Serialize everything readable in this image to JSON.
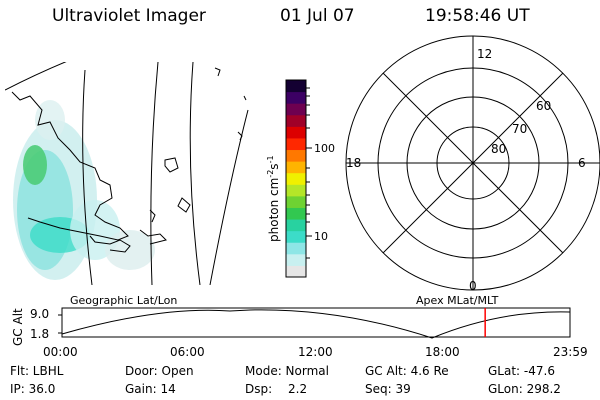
{
  "header": {
    "instrument": "Ultraviolet Imager",
    "date": "01 Jul 07",
    "time": "19:58:46 UT"
  },
  "colorbar": {
    "unit_label": "photon cm",
    "unit_exp1": "-2",
    "unit_mid": "s",
    "unit_exp2": "-1",
    "ticks": [
      "100",
      "10"
    ],
    "colors": [
      "#e6e6e6",
      "#c8f0f0",
      "#8ee6e6",
      "#3cdcc8",
      "#28d2a0",
      "#32c850",
      "#6ed232",
      "#b4e628",
      "#f0f000",
      "#ffb400",
      "#ff7800",
      "#ff2800",
      "#dc0000",
      "#a00028",
      "#6e0050",
      "#3c0064",
      "#140032"
    ]
  },
  "polar": {
    "mlt_labels": {
      "top": "12",
      "left": "18",
      "right": "6",
      "bottom": "0"
    },
    "lat_labels": [
      "60",
      "70",
      "80"
    ]
  },
  "map_labels": {
    "left": "Geographic Lat/Lon",
    "right": "Apex  MLat/MLT"
  },
  "timeline": {
    "ylabel": "GC Alt",
    "ymax": "9.0",
    "ymin": "1.8",
    "xticks": [
      "00:00",
      "06:00",
      "12:00",
      "18:00",
      "23:59"
    ],
    "current_time_fraction": 0.833,
    "marker_color": "#ff0000"
  },
  "info": {
    "flt": "Flt: LBHL",
    "ip": "IP: 36.0",
    "door": "Door: Open",
    "gain": "Gain: 14",
    "mode": "Mode: Normal",
    "dsp_label": "Dsp:",
    "dsp_value": "2.2",
    "gcalt": "GC Alt: 4.6 Re",
    "seq": "Seq: 39",
    "glat": "GLat: -47.6",
    "glon": "GLon: 298.2"
  }
}
